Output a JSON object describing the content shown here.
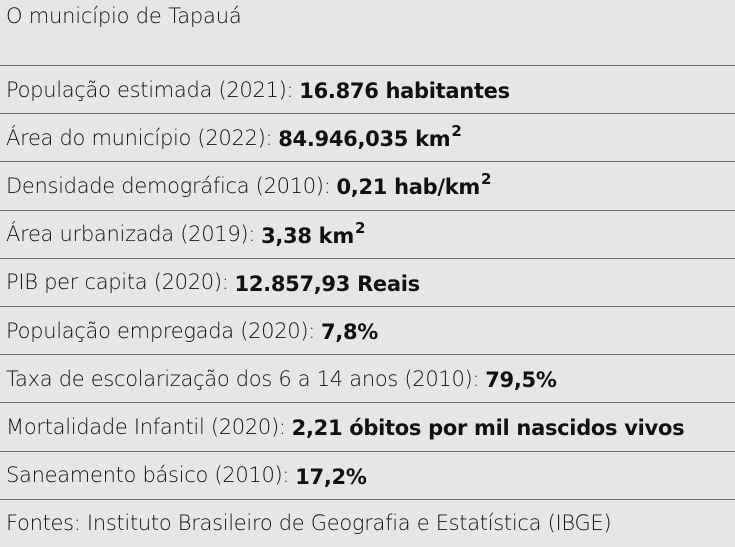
{
  "title": "O município de Tapauá",
  "rows": [
    {
      "label": "População estimada (2021):",
      "value": "16.876 habitantes",
      "sup": ""
    },
    {
      "label": "Área do município (2022):",
      "value": "84.946,035 km",
      "sup": "2"
    },
    {
      "label": "Densidade demográfica (2010):",
      "value": "0,21 hab/km",
      "sup": "2"
    },
    {
      "label": "Área urbanizada (2019):",
      "value": "3,38 km",
      "sup": "2"
    },
    {
      "label": "PIB per capita (2020):",
      "value": "12.857,93 Reais",
      "sup": ""
    },
    {
      "label": "População empregada (2020):",
      "value": "7,8%",
      "sup": ""
    },
    {
      "label": "Taxa de escolarização dos 6 a 14 anos (2010):",
      "value": "79,5%",
      "sup": ""
    },
    {
      "label": "Mortalidade Infantil (2020):",
      "value": "2,21 óbitos por mil nascidos vivos",
      "sup": ""
    },
    {
      "label": "Saneamento básico (2010):",
      "value": "17,2%",
      "sup": ""
    }
  ],
  "source": "Fontes: Instituto Brasileiro de Geografia e Estatística (IBGE)"
}
